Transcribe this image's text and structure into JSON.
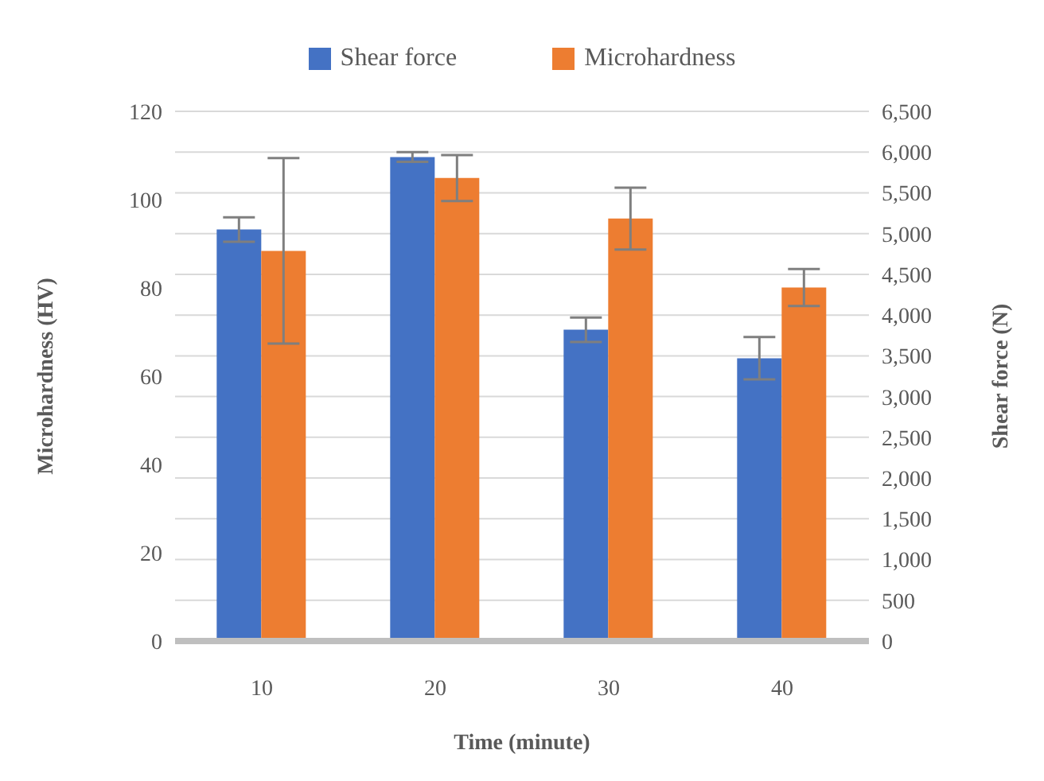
{
  "chart_data": {
    "type": "bar",
    "xlabel": "Time (minute)",
    "ylabel": "Microhardness (HV)",
    "y2label": "Shear force (N)",
    "categories": [
      "10",
      "20",
      "30",
      "40"
    ],
    "series": [
      {
        "name": "Shear force",
        "color": "#4472c4",
        "axis": "y2",
        "values": [
          5050,
          5940,
          3820,
          3470
        ],
        "errors": [
          150,
          60,
          150,
          260
        ]
      },
      {
        "name": "Microhardness",
        "color": "#ed7d31",
        "values": [
          88.4,
          104.9,
          95.7,
          80.1
        ],
        "errors": [
          21,
          5.2,
          7,
          4.2
        ]
      }
    ],
    "ylim": [
      0,
      120
    ],
    "yticks": [
      0,
      20,
      40,
      60,
      80,
      100,
      120
    ],
    "y2lim": [
      0,
      6500
    ],
    "y2ticks": [
      {
        "value": 0,
        "label": "0"
      },
      {
        "value": 500,
        "label": "500"
      },
      {
        "value": 1000,
        "label": "1,000"
      },
      {
        "value": 1500,
        "label": "1,500"
      },
      {
        "value": 2000,
        "label": "2,000"
      },
      {
        "value": 2500,
        "label": "2,500"
      },
      {
        "value": 3000,
        "label": "3,000"
      },
      {
        "value": 3500,
        "label": "3,500"
      },
      {
        "value": 4000,
        "label": "4,000"
      },
      {
        "value": 4500,
        "label": "4,500"
      },
      {
        "value": 5000,
        "label": "5,000"
      },
      {
        "value": 5500,
        "label": "5,500"
      },
      {
        "value": 6000,
        "label": "6,000"
      },
      {
        "value": 6500,
        "label": "6,500"
      }
    ],
    "grid": "y",
    "legend": "top"
  }
}
